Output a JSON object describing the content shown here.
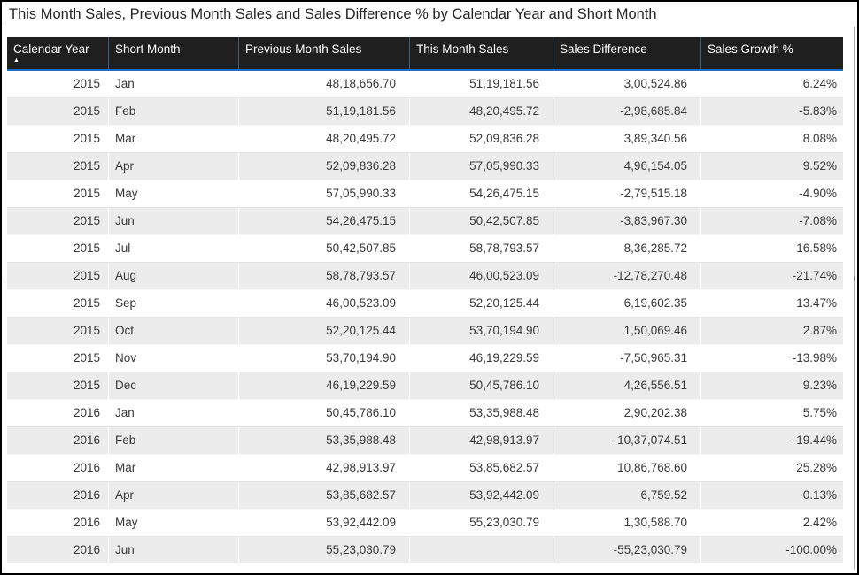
{
  "visual": {
    "title": "This Month Sales, Previous Month Sales and Sales Difference % by Calendar Year and Short Month"
  },
  "sort": {
    "column": "Calendar Year",
    "direction": "ascending",
    "glyph": "▲"
  },
  "colors": {
    "header_background": "#1f1f1f",
    "header_text": "#ffffff",
    "header_underline_blue": "#1e6ec8",
    "header_separator": "#3f5c79",
    "row_alternate_background": "#ececec",
    "body_text": "#373737",
    "outer_border": "#000000"
  },
  "chart_data": {
    "type": "table",
    "title": "This Month Sales, Previous Month Sales and Sales Difference % by Calendar Year and Short Month",
    "columns": [
      {
        "key": "calendar_year",
        "label": "Calendar Year",
        "align": "right",
        "sorted": "ascending"
      },
      {
        "key": "short_month",
        "label": "Short Month",
        "align": "left"
      },
      {
        "key": "previous_month_sales",
        "label": "Previous Month Sales",
        "align": "right"
      },
      {
        "key": "this_month_sales",
        "label": "This Month Sales",
        "align": "right"
      },
      {
        "key": "sales_difference",
        "label": "Sales Difference",
        "align": "right"
      },
      {
        "key": "sales_growth_pct",
        "label": "Sales Growth %",
        "align": "right"
      }
    ],
    "rows": [
      [
        "2015",
        "Jan",
        "48,18,656.70",
        "51,19,181.56",
        "3,00,524.86",
        "6.24%"
      ],
      [
        "2015",
        "Feb",
        "51,19,181.56",
        "48,20,495.72",
        "-2,98,685.84",
        "-5.83%"
      ],
      [
        "2015",
        "Mar",
        "48,20,495.72",
        "52,09,836.28",
        "3,89,340.56",
        "8.08%"
      ],
      [
        "2015",
        "Apr",
        "52,09,836.28",
        "57,05,990.33",
        "4,96,154.05",
        "9.52%"
      ],
      [
        "2015",
        "May",
        "57,05,990.33",
        "54,26,475.15",
        "-2,79,515.18",
        "-4.90%"
      ],
      [
        "2015",
        "Jun",
        "54,26,475.15",
        "50,42,507.85",
        "-3,83,967.30",
        "-7.08%"
      ],
      [
        "2015",
        "Jul",
        "50,42,507.85",
        "58,78,793.57",
        "8,36,285.72",
        "16.58%"
      ],
      [
        "2015",
        "Aug",
        "58,78,793.57",
        "46,00,523.09",
        "-12,78,270.48",
        "-21.74%"
      ],
      [
        "2015",
        "Sep",
        "46,00,523.09",
        "52,20,125.44",
        "6,19,602.35",
        "13.47%"
      ],
      [
        "2015",
        "Oct",
        "52,20,125.44",
        "53,70,194.90",
        "1,50,069.46",
        "2.87%"
      ],
      [
        "2015",
        "Nov",
        "53,70,194.90",
        "46,19,229.59",
        "-7,50,965.31",
        "-13.98%"
      ],
      [
        "2015",
        "Dec",
        "46,19,229.59",
        "50,45,786.10",
        "4,26,556.51",
        "9.23%"
      ],
      [
        "2016",
        "Jan",
        "50,45,786.10",
        "53,35,988.48",
        "2,90,202.38",
        "5.75%"
      ],
      [
        "2016",
        "Feb",
        "53,35,988.48",
        "42,98,913.97",
        "-10,37,074.51",
        "-19.44%"
      ],
      [
        "2016",
        "Mar",
        "42,98,913.97",
        "53,85,682.57",
        "10,86,768.60",
        "25.28%"
      ],
      [
        "2016",
        "Apr",
        "53,85,682.57",
        "53,92,442.09",
        "6,759.52",
        "0.13%"
      ],
      [
        "2016",
        "May",
        "53,92,442.09",
        "55,23,030.79",
        "1,30,588.70",
        "2.42%"
      ],
      [
        "2016",
        "Jun",
        "55,23,030.79",
        "",
        "-55,23,030.79",
        "-100.00%"
      ]
    ]
  }
}
